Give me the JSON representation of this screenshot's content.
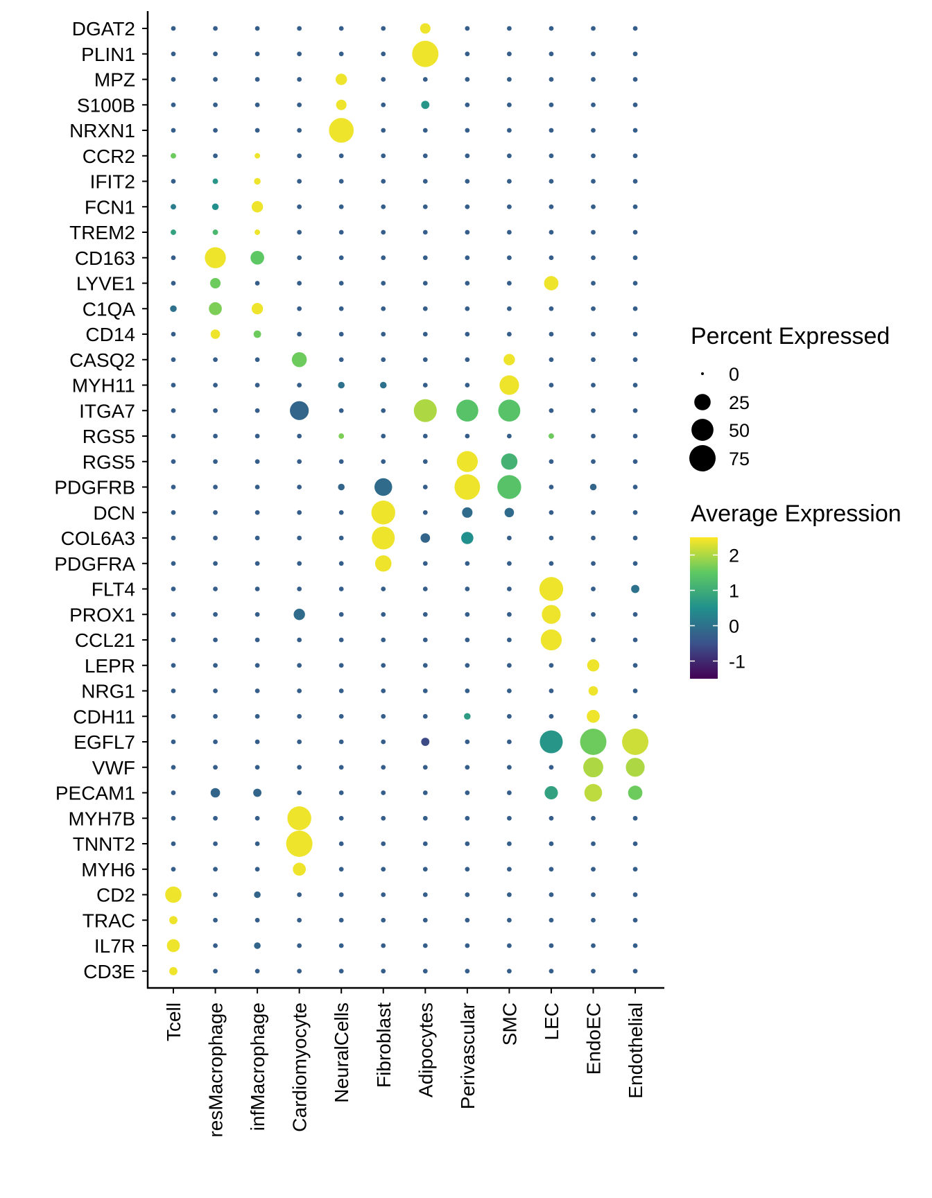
{
  "chart_data": {
    "type": "dotplot",
    "title": "",
    "xlabel": "",
    "ylabel": "",
    "genes": [
      "DGAT2",
      "PLIN1",
      "MPZ",
      "S100B",
      "NRXN1",
      "CCR2",
      "IFIT2",
      "FCN1",
      "TREM2",
      "CD163",
      "LYVE1",
      "C1QA",
      "CD14",
      "CASQ2",
      "MYH11",
      "ITGA7",
      "RGS5",
      "RGS5",
      "PDGFRB",
      "DCN",
      "COL6A3",
      "PDGFRA",
      "FLT4",
      "PROX1",
      "CCL21",
      "LEPR",
      "NRG1",
      "CDH11",
      "EGFL7",
      "VWF",
      "PECAM1",
      "MYH7B",
      "TNNT2",
      "MYH6",
      "CD2",
      "TRAC",
      "IL7R",
      "CD3E"
    ],
    "cell_types": [
      "Tcell",
      "resMacrophage",
      "infMacrophage",
      "Cardiomyocyte",
      "NeuralCells",
      "Fibroblast",
      "Adipocytes",
      "Perivascular",
      "SMC",
      "LEC",
      "EndoEC",
      "Endothelial"
    ],
    "size_legend": {
      "title": "Percent Expressed",
      "breaks": [
        0,
        25,
        50,
        75
      ],
      "labels": [
        "0",
        "25",
        "50",
        "75"
      ]
    },
    "color_legend": {
      "title": "Average Expression",
      "range": [
        -1.5,
        2.5
      ],
      "breaks": [
        2,
        1,
        0,
        -1
      ],
      "labels": [
        "2",
        "1",
        "0",
        "-1"
      ],
      "palette": [
        "#440154",
        "#3b528b",
        "#21908c",
        "#5dc863",
        "#fde725"
      ]
    },
    "grid": false,
    "points": [
      {
        "gene": 0,
        "cell": 6,
        "pct": 8,
        "avg": 2.4
      },
      {
        "gene": 1,
        "cell": 6,
        "pct": 75,
        "avg": 2.4
      },
      {
        "gene": 2,
        "cell": 4,
        "pct": 10,
        "avg": 2.4
      },
      {
        "gene": 3,
        "cell": 4,
        "pct": 8,
        "avg": 2.4
      },
      {
        "gene": 3,
        "cell": 6,
        "pct": 4,
        "avg": 0.6
      },
      {
        "gene": 4,
        "cell": 4,
        "pct": 65,
        "avg": 2.4
      },
      {
        "gene": 5,
        "cell": 0,
        "pct": 1,
        "avg": 1.6
      },
      {
        "gene": 5,
        "cell": 2,
        "pct": 1,
        "avg": 2.4
      },
      {
        "gene": 6,
        "cell": 2,
        "pct": 2,
        "avg": 2.4
      },
      {
        "gene": 6,
        "cell": 1,
        "pct": 1,
        "avg": 0.6
      },
      {
        "gene": 7,
        "cell": 2,
        "pct": 10,
        "avg": 2.4
      },
      {
        "gene": 7,
        "cell": 1,
        "pct": 2,
        "avg": 0.5
      },
      {
        "gene": 7,
        "cell": 0,
        "pct": 1,
        "avg": 0.2
      },
      {
        "gene": 8,
        "cell": 2,
        "pct": 1,
        "avg": 2.4
      },
      {
        "gene": 8,
        "cell": 1,
        "pct": 1,
        "avg": 1.2
      },
      {
        "gene": 8,
        "cell": 0,
        "pct": 1,
        "avg": 0.8
      },
      {
        "gene": 9,
        "cell": 1,
        "pct": 45,
        "avg": 2.4
      },
      {
        "gene": 9,
        "cell": 2,
        "pct": 16,
        "avg": 1.5
      },
      {
        "gene": 10,
        "cell": 1,
        "pct": 8,
        "avg": 1.6
      },
      {
        "gene": 10,
        "cell": 9,
        "pct": 18,
        "avg": 2.4
      },
      {
        "gene": 11,
        "cell": 1,
        "pct": 14,
        "avg": 1.7
      },
      {
        "gene": 11,
        "cell": 2,
        "pct": 10,
        "avg": 2.4
      },
      {
        "gene": 11,
        "cell": 0,
        "pct": 2,
        "avg": 0.0
      },
      {
        "gene": 12,
        "cell": 1,
        "pct": 6,
        "avg": 2.4
      },
      {
        "gene": 12,
        "cell": 2,
        "pct": 3,
        "avg": 1.6
      },
      {
        "gene": 13,
        "cell": 3,
        "pct": 20,
        "avg": 1.6
      },
      {
        "gene": 13,
        "cell": 8,
        "pct": 10,
        "avg": 2.4
      },
      {
        "gene": 14,
        "cell": 8,
        "pct": 38,
        "avg": 2.4
      },
      {
        "gene": 14,
        "cell": 4,
        "pct": 2,
        "avg": 0.0
      },
      {
        "gene": 14,
        "cell": 5,
        "pct": 2,
        "avg": 0.0
      },
      {
        "gene": 15,
        "cell": 3,
        "pct": 35,
        "avg": -0.2
      },
      {
        "gene": 15,
        "cell": 6,
        "pct": 55,
        "avg": 2.0
      },
      {
        "gene": 15,
        "cell": 7,
        "pct": 50,
        "avg": 1.4
      },
      {
        "gene": 15,
        "cell": 8,
        "pct": 50,
        "avg": 1.4
      },
      {
        "gene": 16,
        "cell": 4,
        "pct": 1,
        "avg": 1.7
      },
      {
        "gene": 16,
        "cell": 9,
        "pct": 1,
        "avg": 1.6
      },
      {
        "gene": 17,
        "cell": 7,
        "pct": 45,
        "avg": 2.4
      },
      {
        "gene": 17,
        "cell": 8,
        "pct": 25,
        "avg": 1.1
      },
      {
        "gene": 18,
        "cell": 5,
        "pct": 30,
        "avg": -0.1
      },
      {
        "gene": 18,
        "cell": 7,
        "pct": 70,
        "avg": 2.4
      },
      {
        "gene": 18,
        "cell": 8,
        "pct": 60,
        "avg": 1.4
      },
      {
        "gene": 18,
        "cell": 4,
        "pct": 2,
        "avg": -0.2
      },
      {
        "gene": 18,
        "cell": 10,
        "pct": 2,
        "avg": -0.2
      },
      {
        "gene": 19,
        "cell": 5,
        "pct": 60,
        "avg": 2.4
      },
      {
        "gene": 19,
        "cell": 7,
        "pct": 8,
        "avg": -0.1
      },
      {
        "gene": 19,
        "cell": 8,
        "pct": 6,
        "avg": -0.1
      },
      {
        "gene": 20,
        "cell": 5,
        "pct": 55,
        "avg": 2.4
      },
      {
        "gene": 20,
        "cell": 7,
        "pct": 12,
        "avg": 0.5
      },
      {
        "gene": 20,
        "cell": 6,
        "pct": 6,
        "avg": -0.2
      },
      {
        "gene": 21,
        "cell": 5,
        "pct": 25,
        "avg": 2.4
      },
      {
        "gene": 22,
        "cell": 9,
        "pct": 60,
        "avg": 2.4
      },
      {
        "gene": 22,
        "cell": 11,
        "pct": 4,
        "avg": 0.0
      },
      {
        "gene": 23,
        "cell": 3,
        "pct": 10,
        "avg": -0.1
      },
      {
        "gene": 23,
        "cell": 9,
        "pct": 35,
        "avg": 2.4
      },
      {
        "gene": 24,
        "cell": 9,
        "pct": 45,
        "avg": 2.4
      },
      {
        "gene": 25,
        "cell": 10,
        "pct": 12,
        "avg": 2.4
      },
      {
        "gene": 26,
        "cell": 10,
        "pct": 6,
        "avg": 2.4
      },
      {
        "gene": 27,
        "cell": 10,
        "pct": 14,
        "avg": 2.4
      },
      {
        "gene": 27,
        "cell": 7,
        "pct": 2,
        "avg": 0.7
      },
      {
        "gene": 28,
        "cell": 9,
        "pct": 55,
        "avg": 0.6
      },
      {
        "gene": 28,
        "cell": 10,
        "pct": 75,
        "avg": 1.6
      },
      {
        "gene": 28,
        "cell": 11,
        "pct": 75,
        "avg": 2.2
      },
      {
        "gene": 28,
        "cell": 6,
        "pct": 4,
        "avg": -0.6
      },
      {
        "gene": 29,
        "cell": 10,
        "pct": 40,
        "avg": 2.0
      },
      {
        "gene": 29,
        "cell": 11,
        "pct": 35,
        "avg": 2.0
      },
      {
        "gene": 30,
        "cell": 9,
        "pct": 15,
        "avg": 0.8
      },
      {
        "gene": 30,
        "cell": 10,
        "pct": 30,
        "avg": 2.1
      },
      {
        "gene": 30,
        "cell": 11,
        "pct": 18,
        "avg": 1.6
      },
      {
        "gene": 30,
        "cell": 1,
        "pct": 6,
        "avg": -0.2
      },
      {
        "gene": 30,
        "cell": 2,
        "pct": 4,
        "avg": -0.2
      },
      {
        "gene": 31,
        "cell": 3,
        "pct": 60,
        "avg": 2.4
      },
      {
        "gene": 32,
        "cell": 3,
        "pct": 75,
        "avg": 2.4
      },
      {
        "gene": 33,
        "cell": 3,
        "pct": 14,
        "avg": 2.4
      },
      {
        "gene": 34,
        "cell": 0,
        "pct": 25,
        "avg": 2.4
      },
      {
        "gene": 34,
        "cell": 2,
        "pct": 2,
        "avg": -0.2
      },
      {
        "gene": 35,
        "cell": 0,
        "pct": 4,
        "avg": 2.4
      },
      {
        "gene": 36,
        "cell": 0,
        "pct": 14,
        "avg": 2.4
      },
      {
        "gene": 36,
        "cell": 2,
        "pct": 2,
        "avg": -0.2
      },
      {
        "gene": 37,
        "cell": 0,
        "pct": 4,
        "avg": 2.4
      }
    ],
    "background": {
      "pct": 0.5,
      "avg": -0.3
    }
  }
}
